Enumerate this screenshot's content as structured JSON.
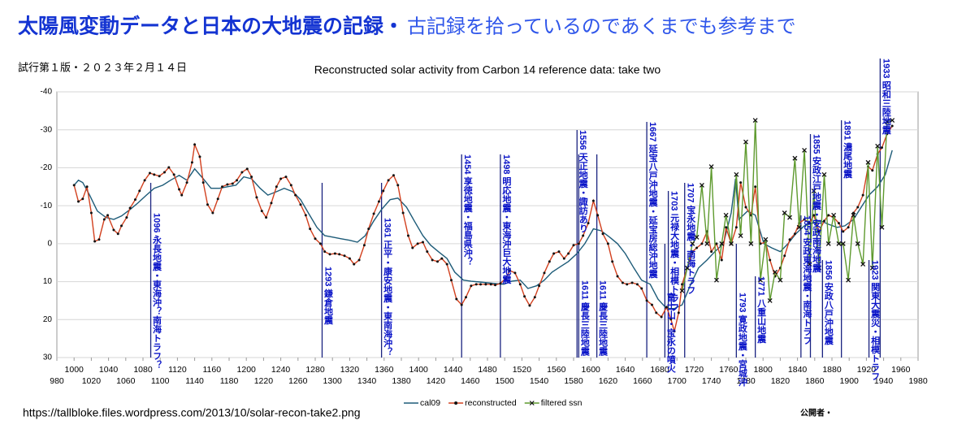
{
  "header": {
    "title": "太陽風変動データと日本の大地震の記録・",
    "title_note": "古記録を拾っているのであくまでも参考まで",
    "version": "試行第１版・２０２３年２月１４日"
  },
  "footer": {
    "source": "https://tallbloke.files.wordpress.com/2013/10/solar-recon-take2.png",
    "publisher": "公開者・"
  },
  "chart_data": {
    "type": "line",
    "title": "Reconstructed solar activity from Carbon 14 reference data: take two",
    "xlim": [
      980,
      1980
    ],
    "xticks": [
      980,
      1000,
      1020,
      1040,
      1060,
      1080,
      1100,
      1120,
      1140,
      1160,
      1180,
      1200,
      1220,
      1240,
      1260,
      1280,
      1300,
      1320,
      1340,
      1360,
      1380,
      1400,
      1420,
      1440,
      1460,
      1480,
      1500,
      1520,
      1540,
      1560,
      1580,
      1600,
      1620,
      1640,
      1660,
      1680,
      1700,
      1720,
      1740,
      1760,
      1780,
      1800,
      1820,
      1840,
      1860,
      1880,
      1900,
      1920,
      1940,
      1960,
      1980
    ],
    "ylim": [
      30,
      -40
    ],
    "yticks": [
      -40,
      -30,
      -20,
      -10,
      0,
      10,
      20,
      30
    ],
    "grid": true,
    "legend": "bottom",
    "series": [
      {
        "name": "cal09",
        "color": "#1d5b78",
        "marker": "none",
        "x": [
          1000,
          1005,
          1010,
          1018,
          1027,
          1037,
          1046,
          1055,
          1065,
          1074,
          1084,
          1093,
          1103,
          1112,
          1122,
          1131,
          1140,
          1150,
          1159,
          1169,
          1178,
          1188,
          1197,
          1206,
          1216,
          1225,
          1235,
          1244,
          1254,
          1263,
          1272,
          1282,
          1291,
          1301,
          1310,
          1320,
          1329,
          1338,
          1348,
          1357,
          1367,
          1376,
          1386,
          1395,
          1405,
          1414,
          1423,
          1433,
          1442,
          1452,
          1461,
          1471,
          1480,
          1489,
          1499,
          1508,
          1518,
          1527,
          1537,
          1546,
          1555,
          1565,
          1574,
          1584,
          1593,
          1603,
          1612,
          1622,
          1631,
          1640,
          1650,
          1659,
          1669,
          1678,
          1688,
          1697,
          1706,
          1716,
          1725,
          1735,
          1744,
          1754,
          1763,
          1768,
          1772,
          1782,
          1791,
          1801,
          1810,
          1820,
          1829,
          1838,
          1848,
          1857,
          1867,
          1876,
          1886,
          1895,
          1905,
          1914,
          1923,
          1933,
          1942,
          1950
        ],
        "values": [
          -15.4,
          -16.7,
          -16.1,
          -12.8,
          -8.6,
          -6.9,
          -6.4,
          -7.3,
          -9.0,
          -10.7,
          -12.8,
          -14.6,
          -15.4,
          -16.7,
          -18.0,
          -16.7,
          -19.7,
          -17.1,
          -14.6,
          -14.6,
          -15.0,
          -15.4,
          -17.6,
          -17.1,
          -14.6,
          -12.8,
          -13.7,
          -14.6,
          -13.7,
          -11.6,
          -8.1,
          -4.3,
          -2.1,
          -1.7,
          -1.3,
          -0.9,
          -0.4,
          -2.1,
          -6.0,
          -9.0,
          -11.6,
          -12.0,
          -9.6,
          -6.0,
          -2.1,
          0.4,
          2.1,
          3.9,
          7.5,
          9.6,
          9.9,
          10.1,
          10.3,
          10.5,
          10.7,
          9.9,
          9.6,
          11.8,
          11.1,
          9.6,
          7.5,
          6.0,
          4.7,
          2.6,
          0,
          -3.9,
          -3.4,
          -1.7,
          0,
          2.6,
          6.4,
          9.6,
          10.7,
          14.6,
          17.1,
          17.1,
          16.1,
          10.7,
          6.4,
          4.3,
          2.1,
          0,
          -8.1,
          -17.1,
          -6.4,
          -8.6,
          -7.5,
          0,
          1.1,
          2.1,
          0,
          -2.6,
          -4.7,
          -5.4,
          -6.0,
          -5.1,
          -4.3,
          -4.7,
          -6.4,
          -9.6,
          -12.8,
          -15.0,
          -18.2,
          -24.6
        ]
      },
      {
        "name": "reconstructed",
        "color": "#d2401e",
        "marker": "dot",
        "x": [
          1000,
          1005,
          1010,
          1015,
          1020,
          1024,
          1029,
          1035,
          1039,
          1046,
          1051,
          1055,
          1061,
          1065,
          1071,
          1076,
          1082,
          1088,
          1093,
          1099,
          1105,
          1110,
          1116,
          1122,
          1125,
          1131,
          1137,
          1140,
          1146,
          1150,
          1155,
          1161,
          1167,
          1172,
          1178,
          1184,
          1189,
          1195,
          1201,
          1206,
          1212,
          1218,
          1223,
          1229,
          1235,
          1240,
          1246,
          1252,
          1257,
          1263,
          1269,
          1274,
          1280,
          1286,
          1291,
          1297,
          1303,
          1308,
          1314,
          1320,
          1325,
          1331,
          1337,
          1342,
          1348,
          1354,
          1359,
          1365,
          1371,
          1376,
          1382,
          1388,
          1393,
          1399,
          1405,
          1410,
          1416,
          1422,
          1427,
          1433,
          1438,
          1444,
          1450,
          1455,
          1461,
          1467,
          1472,
          1478,
          1484,
          1489,
          1495,
          1501,
          1506,
          1512,
          1518,
          1523,
          1529,
          1535,
          1540,
          1546,
          1552,
          1557,
          1563,
          1569,
          1574,
          1580,
          1586,
          1591,
          1597,
          1603,
          1608,
          1614,
          1620,
          1625,
          1631,
          1637,
          1642,
          1648,
          1654,
          1659,
          1665,
          1671,
          1676,
          1682,
          1688,
          1693,
          1697,
          1702,
          1706,
          1712,
          1718,
          1723,
          1729,
          1735,
          1740,
          1746,
          1752,
          1757,
          1763,
          1769,
          1774,
          1780,
          1786,
          1791,
          1797,
          1803,
          1808,
          1814,
          1820,
          1825,
          1831,
          1837,
          1842,
          1848,
          1854,
          1859,
          1865,
          1871,
          1876,
          1882,
          1888,
          1893,
          1899,
          1905,
          1910,
          1916,
          1922,
          1927,
          1933,
          1938,
          1944,
          1950
        ],
        "values": [
          -15.4,
          -11.1,
          -11.8,
          -15.0,
          -8.1,
          -0.6,
          -1.1,
          -6.4,
          -7.5,
          -3.6,
          -2.6,
          -4.7,
          -6.9,
          -9.4,
          -11.6,
          -13.9,
          -16.7,
          -18.6,
          -18.2,
          -17.8,
          -18.8,
          -20.1,
          -18.2,
          -14.3,
          -12.8,
          -16.1,
          -21.4,
          -26.1,
          -22.9,
          -16.1,
          -10.3,
          -8.1,
          -11.8,
          -15.0,
          -15.6,
          -15.8,
          -16.7,
          -18.8,
          -19.7,
          -17.6,
          -12.2,
          -8.6,
          -6.9,
          -10.7,
          -15.0,
          -17.1,
          -17.6,
          -15.4,
          -12.8,
          -10.3,
          -7.5,
          -3.9,
          -1.3,
          0,
          2.1,
          2.8,
          2.6,
          2.8,
          3.2,
          3.9,
          5.4,
          4.3,
          0.4,
          -3.9,
          -7.9,
          -11.1,
          -13.9,
          -16.7,
          -18.0,
          -15.4,
          -8.1,
          -2.1,
          1.1,
          0,
          -0.4,
          2.1,
          4.3,
          4.7,
          3.9,
          5.4,
          9.6,
          14.6,
          16.1,
          14.1,
          11.1,
          10.7,
          10.7,
          10.7,
          10.7,
          10.9,
          10.5,
          9.2,
          7.1,
          7.7,
          10.7,
          13.9,
          16.3,
          14.1,
          11.1,
          7.7,
          4.7,
          2.6,
          2.1,
          3.9,
          2.6,
          0.4,
          0,
          -2.1,
          -5.4,
          -11.3,
          -7.5,
          -2.6,
          0,
          4.7,
          8.6,
          10.3,
          10.7,
          10.3,
          10.7,
          11.8,
          15.0,
          16.1,
          18.2,
          19.3,
          16.7,
          19.9,
          23.1,
          18.2,
          10.7,
          6.4,
          2.1,
          1.1,
          0,
          -3.2,
          2.1,
          0,
          4.3,
          -4.3,
          0,
          -4.3,
          -16.1,
          -9.6,
          -7.5,
          -15.0,
          0,
          -0.4,
          4.3,
          8.6,
          6.4,
          3.2,
          -1.1,
          -2.6,
          -5.4,
          -6.4,
          -5.4,
          -7.5,
          -3.2,
          -6.0,
          -7.5,
          -6.9,
          -5.4,
          -3.2,
          -4.3,
          -8.1,
          -9.6,
          -12.8,
          -20.3,
          -19.3,
          -23.6,
          -25.3,
          -28.9,
          -31.0
        ]
      },
      {
        "name": "filtered ssn",
        "color": "#5e9a2e",
        "marker": "cross",
        "x": [
          1706,
          1712,
          1718,
          1723,
          1729,
          1735,
          1740,
          1746,
          1752,
          1757,
          1763,
          1769,
          1774,
          1780,
          1786,
          1791,
          1797,
          1803,
          1808,
          1814,
          1820,
          1825,
          1831,
          1837,
          1842,
          1848,
          1854,
          1859,
          1865,
          1871,
          1876,
          1882,
          1888,
          1893,
          1899,
          1905,
          1910,
          1916,
          1922,
          1927,
          1933,
          1938,
          1944,
          1950
        ],
        "values": [
          12.4,
          6.4,
          0,
          -1.7,
          -15.4,
          0,
          -20.3,
          9.6,
          0,
          -7.5,
          0,
          -18.2,
          -2.1,
          -26.8,
          0,
          -32.5,
          9.6,
          -1.1,
          15.0,
          7.5,
          9.6,
          -8.1,
          -6.9,
          -22.5,
          -4.3,
          -24.6,
          5.4,
          -13.9,
          6.4,
          -18.2,
          0,
          -7.5,
          0,
          0,
          9.6,
          -7.5,
          0,
          5.4,
          -21.4,
          6.4,
          -25.7,
          -4.3,
          -32.1,
          -32.5
        ]
      }
    ],
    "annotations": [
      {
        "text": "1096 永長地震・東海沖？南海トラフ？",
        "x": 1089
      },
      {
        "text": "1293 鎌倉地震",
        "x": 1288
      },
      {
        "text": "1361 正平・康安地震・東南海沖？",
        "x": 1357
      },
      {
        "text": "1454 享徳地震・福島県沖？",
        "x": 1450
      },
      {
        "text": "1498 明応地震・東海沖巨大地震",
        "x": 1495
      },
      {
        "text": "1556 天正地震・諏訪あり",
        "x": 1584
      },
      {
        "text": "1611 慶長三陸地震",
        "x": 1586
      },
      {
        "text": "1611 慶長三陸地震",
        "x": 1607
      },
      {
        "text": "1667 延宝八戸沖地震・延宝房総沖地震",
        "x": 1665
      },
      {
        "text": "1703 元禄大地震・相模トラフ",
        "x": 1690
      },
      {
        "text": "富士山・宝永の噴火",
        "x": 1686
      },
      {
        "text": "1707 宝永地震・南海トラフ",
        "x": 1709
      },
      {
        "text": "1793 寛政地震・宮城沖",
        "x": 1769
      },
      {
        "text": "1771 八重山地震",
        "x": 1791
      },
      {
        "text": "1854 安政東海地震・南海トラフ",
        "x": 1844
      },
      {
        "text": "1855 安政江戸地震・安政南海地震",
        "x": 1855
      },
      {
        "text": "1856 安政八戸沖地震",
        "x": 1869
      },
      {
        "text": "1891 濃尾地震",
        "x": 1891
      },
      {
        "text": "1923 関東大震災・相模トラフ",
        "x": 1923
      },
      {
        "text": "1933 昭和三陸地震",
        "x": 1936
      }
    ]
  }
}
